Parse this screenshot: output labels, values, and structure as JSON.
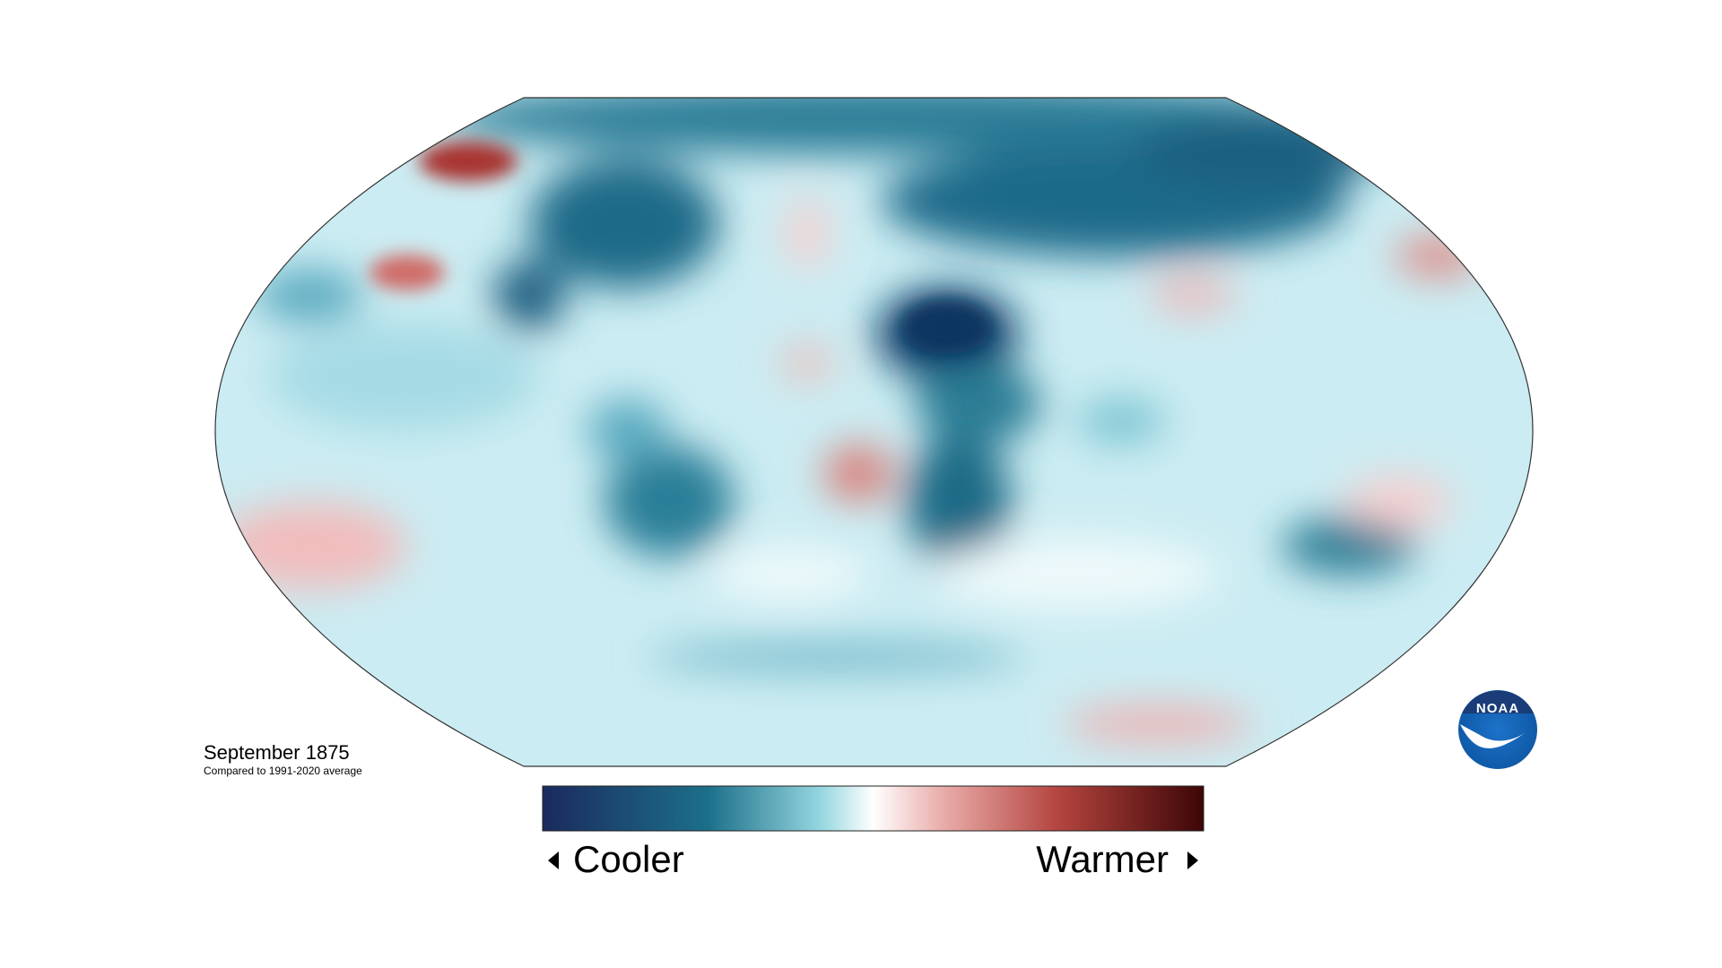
{
  "map": {
    "title": "September 1875",
    "subtitle": "Compared to 1991-2020 average"
  },
  "legend": {
    "low_label": "Cooler",
    "high_label": "Warmer"
  },
  "logo": {
    "text": "NOAA"
  }
}
